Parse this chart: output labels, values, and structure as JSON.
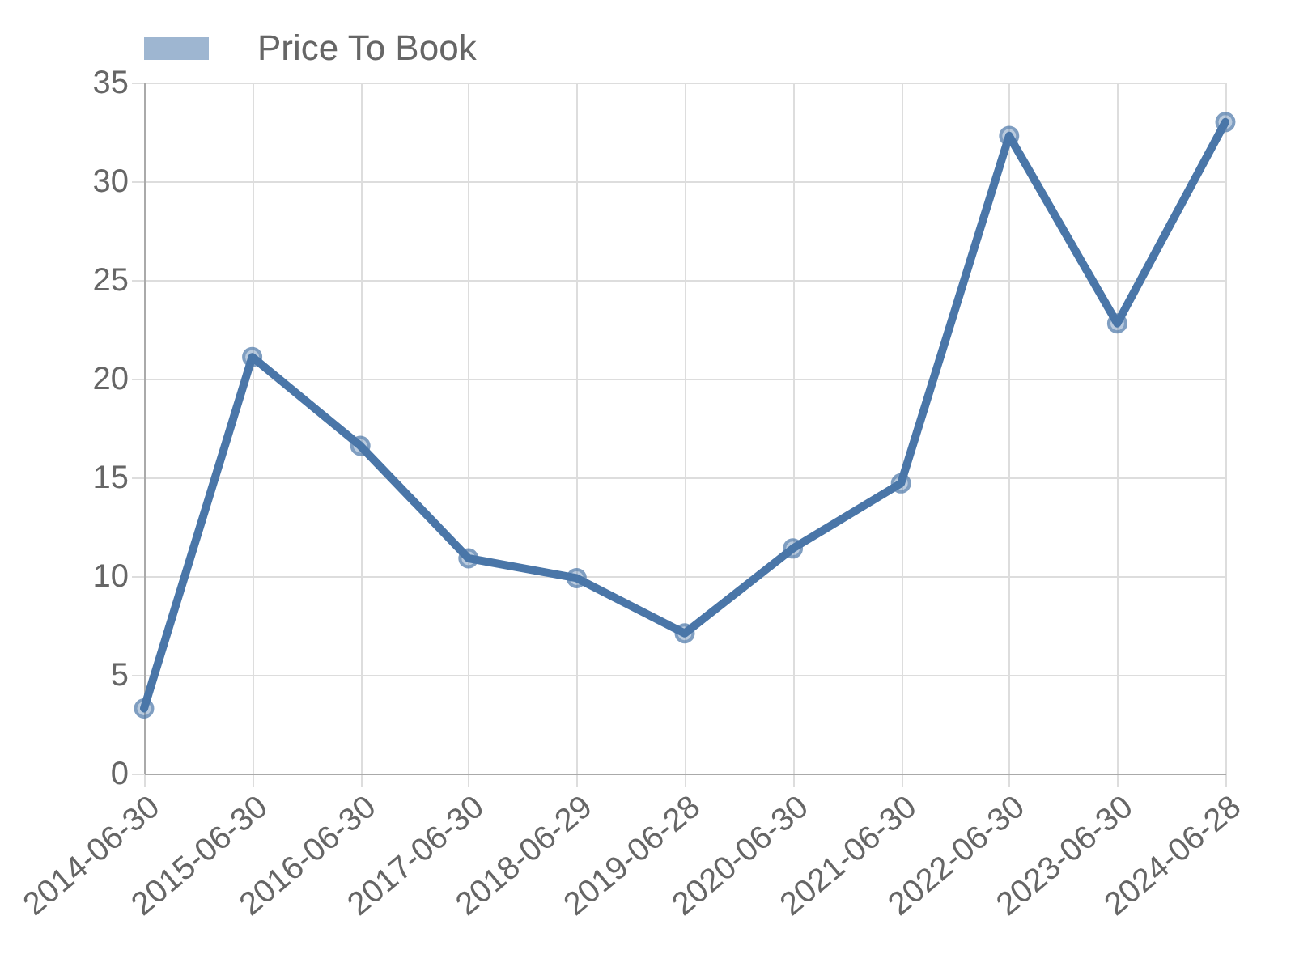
{
  "chart_data": {
    "type": "line",
    "categories": [
      "2014-06-30",
      "2015-06-30",
      "2016-06-30",
      "2017-06-30",
      "2018-06-29",
      "2019-06-28",
      "2020-06-30",
      "2021-06-30",
      "2022-06-30",
      "2023-06-30",
      "2024-06-28"
    ],
    "series": [
      {
        "name": "Price To Book",
        "color": "#4a76a8",
        "values": [
          3.3,
          21.1,
          16.6,
          10.9,
          9.9,
          7.1,
          11.4,
          14.7,
          32.3,
          22.8,
          33.0
        ]
      }
    ],
    "ylim": [
      0,
      35
    ],
    "yticks": [
      0,
      5,
      10,
      15,
      20,
      25,
      30,
      35
    ],
    "grid": true,
    "legend": "top",
    "marker": "circle",
    "line_style": "solid"
  }
}
